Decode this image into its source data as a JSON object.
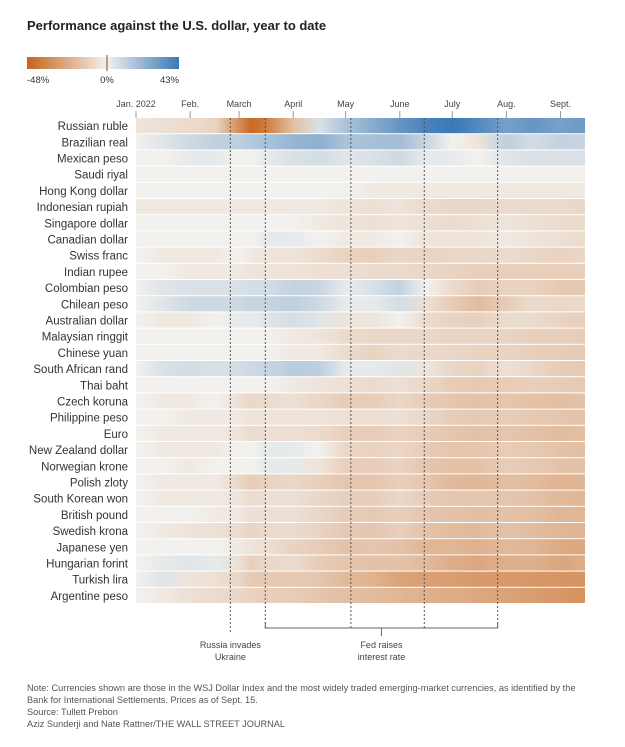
{
  "title": "Performance against the U.S. dollar, year to date",
  "legend": {
    "min_label": "-48%",
    "mid_label": "0%",
    "max_label": "43%",
    "min_value": -48,
    "max_value": 43,
    "negative_color": "#c8631a",
    "neutral_color": "#f2f1ee",
    "positive_color": "#3a78b7"
  },
  "chart_data": {
    "type": "heatmap",
    "title": "Performance against the U.S. dollar, year to date",
    "value_unit": "% change vs. U.S. dollar since Jan. 1, 2022",
    "x_range": [
      "2022-01-01",
      "2022-09-15"
    ],
    "x_ticks": [
      {
        "label": "Jan. 2022",
        "date": "2022-01-01"
      },
      {
        "label": "Feb.",
        "date": "2022-02-01"
      },
      {
        "label": "March",
        "date": "2022-03-01"
      },
      {
        "label": "April",
        "date": "2022-04-01"
      },
      {
        "label": "May",
        "date": "2022-05-01"
      },
      {
        "label": "June",
        "date": "2022-06-01"
      },
      {
        "label": "July",
        "date": "2022-07-01"
      },
      {
        "label": "Aug.",
        "date": "2022-08-01"
      },
      {
        "label": "Sept.",
        "date": "2022-09-01"
      }
    ],
    "x": [
      "2022-01-01",
      "2022-01-16",
      "2022-02-01",
      "2022-02-16",
      "2022-03-01",
      "2022-03-08",
      "2022-03-16",
      "2022-04-01",
      "2022-04-16",
      "2022-05-01",
      "2022-05-16",
      "2022-06-01",
      "2022-06-16",
      "2022-07-01",
      "2022-07-16",
      "2022-08-01",
      "2022-08-16",
      "2022-09-01",
      "2022-09-15"
    ],
    "rows": [
      {
        "name": "Russian ruble",
        "values": [
          -2,
          -3,
          -4,
          -6,
          -30,
          -45,
          -38,
          -12,
          3,
          12,
          20,
          30,
          38,
          43,
          35,
          25,
          30,
          25,
          28
        ]
      },
      {
        "name": "Brazilian real",
        "values": [
          0,
          2,
          5,
          8,
          8,
          10,
          12,
          17,
          19,
          12,
          13,
          14,
          6,
          0,
          -2,
          8,
          4,
          7,
          6
        ]
      },
      {
        "name": "Mexican peso",
        "values": [
          0,
          0,
          1,
          1,
          0,
          0,
          1,
          3,
          4,
          2,
          3,
          5,
          1,
          1,
          0,
          2,
          3,
          3,
          3
        ]
      },
      {
        "name": "Saudi riyal",
        "values": [
          0,
          0,
          0,
          0,
          0,
          0,
          0,
          0,
          0,
          0,
          0,
          0,
          0,
          0,
          0,
          0,
          0,
          0,
          0
        ]
      },
      {
        "name": "Hong Kong dollar",
        "values": [
          0,
          0,
          0,
          0,
          0,
          0,
          0,
          0,
          0,
          0,
          -1,
          -1,
          -1,
          -1,
          -1,
          -1,
          -1,
          -1,
          -1
        ]
      },
      {
        "name": "Indonesian rupiah",
        "values": [
          -1,
          -1,
          -1,
          -1,
          -1,
          -1,
          -1,
          -1,
          -1,
          -2,
          -3,
          -2,
          -4,
          -5,
          -5,
          -4,
          -4,
          -4,
          -5
        ]
      },
      {
        "name": "Singapore dollar",
        "values": [
          0,
          0,
          0,
          0,
          0,
          0,
          0,
          0,
          -1,
          -2,
          -3,
          -2,
          -3,
          -4,
          -3,
          -2,
          -3,
          -4,
          -4
        ]
      },
      {
        "name": "Canadian dollar",
        "values": [
          0,
          0,
          0,
          0,
          0,
          0,
          1,
          1,
          0,
          -1,
          -1,
          0,
          -2,
          -2,
          -2,
          -1,
          -2,
          -3,
          -4
        ]
      },
      {
        "name": "Swiss franc",
        "values": [
          0,
          -1,
          -1,
          -1,
          0,
          -1,
          -2,
          -2,
          -4,
          -6,
          -7,
          -5,
          -6,
          -5,
          -5,
          -4,
          -5,
          -6,
          -5
        ]
      },
      {
        "name": "Indian rupee",
        "values": [
          0,
          0,
          -1,
          -1,
          -1,
          -2,
          -2,
          -2,
          -3,
          -3,
          -4,
          -4,
          -5,
          -6,
          -7,
          -7,
          -7,
          -7,
          -7
        ]
      },
      {
        "name": "Colombian peso",
        "values": [
          0,
          2,
          3,
          3,
          3,
          4,
          4,
          7,
          6,
          1,
          3,
          7,
          0,
          -4,
          -8,
          -6,
          -6,
          -9,
          -9
        ]
      },
      {
        "name": "Chilean peso",
        "values": [
          0,
          2,
          5,
          5,
          5,
          6,
          6,
          8,
          5,
          1,
          1,
          4,
          -3,
          -8,
          -13,
          -8,
          -4,
          -5,
          -4
        ]
      },
      {
        "name": "Australian dollar",
        "values": [
          0,
          -1,
          -1,
          0,
          1,
          1,
          2,
          4,
          2,
          -2,
          -2,
          0,
          -4,
          -6,
          -7,
          -4,
          -4,
          -6,
          -7
        ]
      },
      {
        "name": "Malaysian ringgit",
        "values": [
          0,
          0,
          0,
          0,
          0,
          0,
          0,
          -1,
          -2,
          -4,
          -5,
          -5,
          -5,
          -6,
          -6,
          -6,
          -7,
          -7,
          -8
        ]
      },
      {
        "name": "Chinese yuan",
        "values": [
          0,
          0,
          0,
          0,
          0,
          0,
          0,
          -1,
          -1,
          -4,
          -6,
          -4,
          -5,
          -5,
          -6,
          -6,
          -7,
          -8,
          -9
        ]
      },
      {
        "name": "South African rand",
        "values": [
          0,
          3,
          4,
          3,
          4,
          5,
          6,
          9,
          8,
          1,
          1,
          2,
          -2,
          -5,
          -6,
          -3,
          -5,
          -8,
          -9
        ]
      },
      {
        "name": "Thai baht",
        "values": [
          0,
          0,
          0,
          0,
          0,
          0,
          0,
          -1,
          -2,
          -3,
          -4,
          -3,
          -5,
          -8,
          -9,
          -8,
          -7,
          -8,
          -9
        ]
      },
      {
        "name": "Czech koruna",
        "values": [
          0,
          -1,
          -1,
          0,
          -3,
          -5,
          -4,
          -3,
          -5,
          -8,
          -8,
          -5,
          -8,
          -10,
          -11,
          -10,
          -11,
          -12,
          -11
        ]
      },
      {
        "name": "Philippine peso",
        "values": [
          0,
          0,
          -1,
          -1,
          -1,
          -2,
          -2,
          -2,
          -2,
          -3,
          -3,
          -3,
          -5,
          -8,
          -9,
          -8,
          -9,
          -10,
          -11
        ]
      },
      {
        "name": "Euro",
        "values": [
          0,
          -1,
          -1,
          -1,
          -2,
          -4,
          -3,
          -3,
          -4,
          -7,
          -8,
          -6,
          -8,
          -10,
          -11,
          -10,
          -11,
          -13,
          -12
        ]
      },
      {
        "name": "New Zealand dollar",
        "values": [
          0,
          -1,
          -1,
          -1,
          0,
          0,
          1,
          1,
          0,
          -5,
          -6,
          -5,
          -8,
          -10,
          -10,
          -8,
          -9,
          -11,
          -12
        ]
      },
      {
        "name": "Norwegian krone",
        "values": [
          0,
          0,
          -1,
          0,
          0,
          0,
          1,
          1,
          -2,
          -7,
          -8,
          -6,
          -10,
          -11,
          -11,
          -8,
          -9,
          -11,
          -11
        ]
      },
      {
        "name": "Polish zloty",
        "values": [
          0,
          -1,
          -1,
          -1,
          -5,
          -8,
          -6,
          -5,
          -7,
          -10,
          -10,
          -7,
          -10,
          -14,
          -15,
          -12,
          -13,
          -16,
          -15
        ]
      },
      {
        "name": "South Korean won",
        "values": [
          0,
          -1,
          -1,
          -1,
          -2,
          -4,
          -3,
          -3,
          -5,
          -7,
          -8,
          -5,
          -8,
          -10,
          -10,
          -10,
          -11,
          -14,
          -15
        ]
      },
      {
        "name": "British pound",
        "values": [
          0,
          0,
          0,
          -1,
          -1,
          -3,
          -3,
          -3,
          -5,
          -8,
          -9,
          -7,
          -10,
          -11,
          -12,
          -11,
          -12,
          -15,
          -15
        ]
      },
      {
        "name": "Swedish krona",
        "values": [
          0,
          -1,
          -2,
          -3,
          -4,
          -6,
          -4,
          -4,
          -6,
          -9,
          -10,
          -7,
          -11,
          -13,
          -14,
          -11,
          -13,
          -15,
          -16
        ]
      },
      {
        "name": "Japanese yen",
        "values": [
          0,
          0,
          0,
          0,
          -1,
          -2,
          -3,
          -6,
          -8,
          -11,
          -10,
          -11,
          -15,
          -15,
          -17,
          -14,
          -15,
          -19,
          -20
        ]
      },
      {
        "name": "Hungarian forint",
        "values": [
          0,
          1,
          2,
          1,
          -3,
          -7,
          -5,
          -4,
          -8,
          -10,
          -11,
          -11,
          -14,
          -18,
          -20,
          -17,
          -17,
          -21,
          -18
        ]
      },
      {
        "name": "Turkish lira",
        "values": [
          0,
          2,
          -2,
          -3,
          -5,
          -9,
          -9,
          -9,
          -10,
          -14,
          -16,
          -22,
          -23,
          -24,
          -25,
          -25,
          -26,
          -27,
          -27
        ]
      },
      {
        "name": "Argentine peso",
        "values": [
          0,
          -1,
          -3,
          -4,
          -5,
          -6,
          -7,
          -8,
          -10,
          -12,
          -13,
          -15,
          -17,
          -18,
          -20,
          -22,
          -24,
          -26,
          -28
        ]
      }
    ],
    "annotations": [
      {
        "label": "Russia invades Ukraine",
        "date": "2022-02-24"
      },
      {
        "label": "Fed raises interest rate",
        "dates": [
          "2022-03-16",
          "2022-05-04",
          "2022-06-15",
          "2022-07-27"
        ]
      }
    ]
  },
  "notes": {
    "note": "Note: Currencies shown are those in the WSJ Dollar Index and the most widely traded emerging-market currencies, as identified by the Bank for International Settlements. Prices as of Sept. 15.",
    "source": "Source: Tullett Prebon",
    "credit": "Aziz Sunderji and Nate Rattner/THE WALL STREET JOURNAL"
  }
}
